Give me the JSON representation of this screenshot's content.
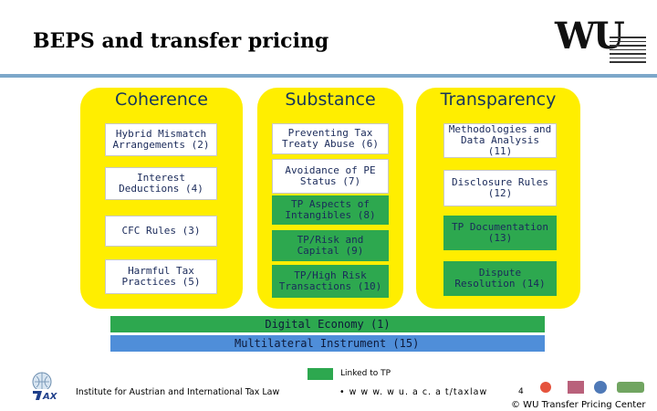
{
  "slide": {
    "title": "BEPS and transfer pricing",
    "columns": [
      {
        "title": "Coherence",
        "items": [
          {
            "label": "Hybrid Mismatch Arrangements (2)",
            "tp": false
          },
          {
            "label": "Interest Deductions (4)",
            "tp": false
          },
          {
            "label": "CFC Rules (3)",
            "tp": false
          },
          {
            "label": "Harmful Tax Practices (5)",
            "tp": false
          }
        ]
      },
      {
        "title": "Substance",
        "items": [
          {
            "label": "Preventing Tax Treaty Abuse (6)",
            "tp": false
          },
          {
            "label": "Avoidance of PE Status (7)",
            "tp": false
          },
          {
            "label": "TP Aspects of Intangibles (8)",
            "tp": true
          },
          {
            "label": "TP/Risk and Capital (9)",
            "tp": true
          },
          {
            "label": "TP/High Risk Transactions (10)",
            "tp": true
          }
        ]
      },
      {
        "title": "Transparency",
        "items": [
          {
            "label": "Methodologies and Data Analysis (11)",
            "tp": false
          },
          {
            "label": "Disclosure Rules (12)",
            "tp": false
          },
          {
            "label": "TP Documentation (13)",
            "tp": true
          },
          {
            "label": "Dispute Resolution (14)",
            "tp": false
          }
        ]
      }
    ],
    "bars": {
      "digital_economy": "Digital Economy (1)",
      "multilateral_instrument": "Multilateral Instrument (15)"
    },
    "legend": {
      "label": "Linked to TP",
      "color": "#2da84f"
    },
    "footer": {
      "institute": "Institute for Austrian and International Tax Law",
      "url": "• w w w. w u. a c. a t/taxlaw",
      "page": "4",
      "copyright": "© WU Transfer Pricing Center"
    },
    "logo": {
      "text": "WU"
    },
    "colors": {
      "column_bg": "#ffee00",
      "tp_green": "#2da84f",
      "mli_blue": "#4f8ed9",
      "rule": "#7ca7c9"
    }
  }
}
